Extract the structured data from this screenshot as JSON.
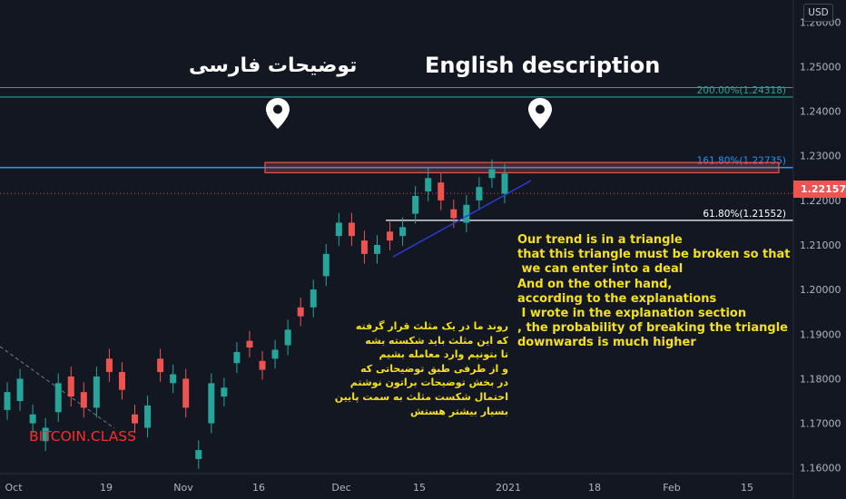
{
  "currency_button": "USD",
  "brand": "BITCOIN.CLASS",
  "headers": {
    "persian": "توضیحات فارسی",
    "english": "English description"
  },
  "current_price": "1.22157",
  "fib_levels": [
    {
      "label": "200.00%(1.24318)",
      "value": 1.24318,
      "color": "#26a69a"
    },
    {
      "label": "161.80%(1.22735)",
      "value": 1.22735,
      "color": "#2196f3"
    },
    {
      "label": "61.80%(1.21552)",
      "value": 1.21552,
      "color": "#ffffff"
    }
  ],
  "english_note": "Our trend is in a triangle\nthat this triangle must be broken so that\n we can enter into a deal\nAnd on the other hand,\naccording to the explanations\n I wrote in the explanation section\n, the probability of breaking the triangle\ndownwards is much higher",
  "persian_note": "روند ما در یک مثلث قرار گرفته\nکه این مثلث باید شکسته بشه\nتا بتونیم وارد معامله بشیم\nو از طرفی طبق توضیحاتی که\nدر بخش توضیحات براتون نوشتم\nاحتمال شکست مثلث به سمت پایین\nبسیار بیشتر هستش",
  "colors": {
    "background": "#131722",
    "up": "#26a69a",
    "down": "#ef5350",
    "note": "#f4e11b",
    "trendline": "#2c3ed8"
  },
  "chart_data": {
    "type": "candlestick",
    "title": "",
    "x_tick_labels": [
      "Oct",
      "19",
      "Nov",
      "16",
      "Dec",
      "15",
      "2021",
      "18",
      "Feb",
      "15"
    ],
    "y_tick_labels": [
      "1.16000",
      "1.17000",
      "1.18000",
      "1.19000",
      "1.20000",
      "1.21000",
      "1.22000",
      "1.23000",
      "1.24000",
      "1.25000",
      "1.26000"
    ],
    "ylim": [
      1.1575,
      1.2625
    ],
    "grid": false,
    "series": [
      {
        "values": [
          [
            1.173,
            1.177
          ],
          [
            1.175,
            1.18
          ],
          [
            1.17,
            1.172
          ],
          [
            1.166,
            1.169
          ],
          [
            1.1725,
            1.179
          ],
          [
            1.1805,
            1.176
          ],
          [
            1.177,
            1.1735
          ],
          [
            1.1735,
            1.1805
          ],
          [
            1.1845,
            1.1815
          ],
          [
            1.1815,
            1.1775
          ],
          [
            1.172,
            1.17
          ],
          [
            1.169,
            1.174
          ],
          [
            1.1845,
            1.1815
          ],
          [
            1.179,
            1.181
          ],
          [
            1.18,
            1.1735
          ],
          [
            1.162,
            1.164
          ],
          [
            1.17,
            1.179
          ],
          [
            1.176,
            1.178
          ],
          [
            1.1835,
            1.186
          ],
          [
            1.1885,
            1.187
          ],
          [
            1.184,
            1.182
          ],
          [
            1.1845,
            1.1865
          ],
          [
            1.1875,
            1.191
          ],
          [
            1.196,
            1.194
          ],
          [
            1.196,
            1.2
          ],
          [
            1.203,
            1.208
          ],
          [
            1.212,
            1.215
          ],
          [
            1.215,
            1.212
          ],
          [
            1.211,
            1.208
          ],
          [
            1.208,
            1.21
          ],
          [
            1.213,
            1.211
          ],
          [
            1.212,
            1.214
          ],
          [
            1.217,
            1.221
          ],
          [
            1.222,
            1.225
          ],
          [
            1.224,
            1.22
          ],
          [
            1.218,
            1.216
          ],
          [
            1.215,
            1.219
          ],
          [
            1.22,
            1.223
          ],
          [
            1.225,
            1.227
          ],
          [
            1.2215,
            1.226
          ]
        ],
        "value_format": "[open, close]"
      }
    ]
  }
}
